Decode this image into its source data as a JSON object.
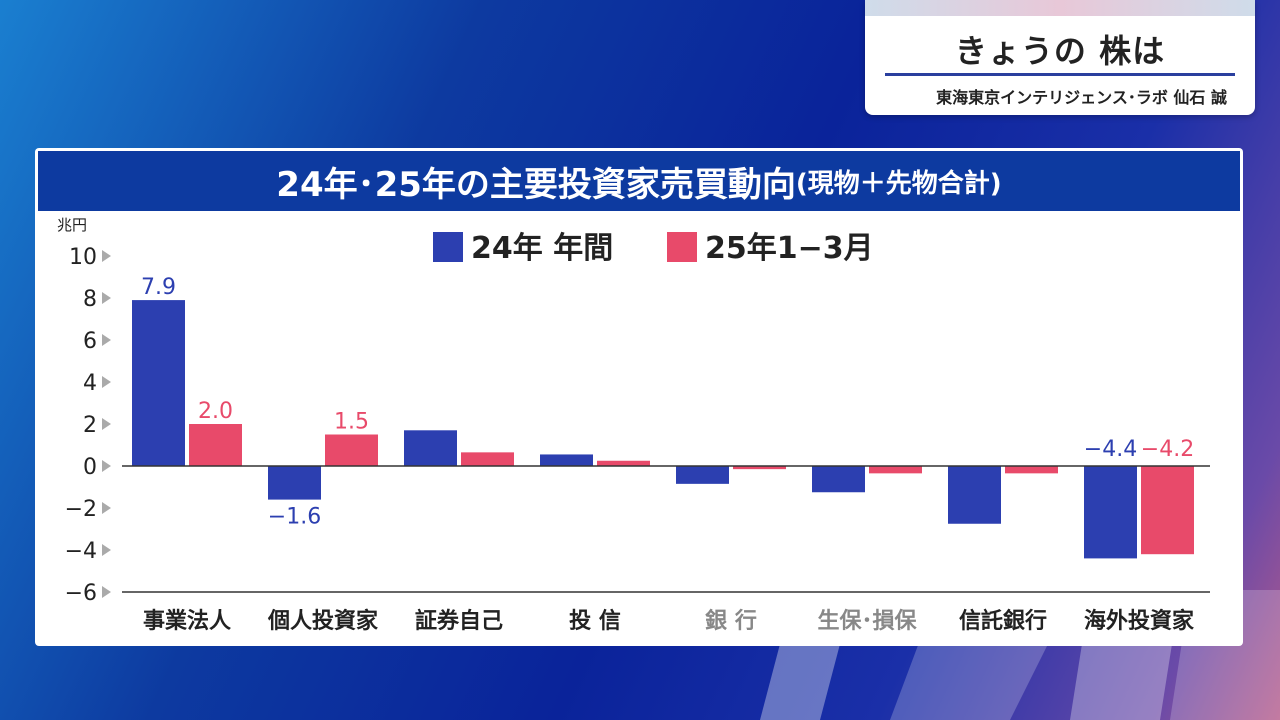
{
  "top_card": {
    "title": "きょうの 株は",
    "subtitle": "東海東京インテリジェンス･ラボ 仙石 誠"
  },
  "panel": {
    "title_main": "24年･25年の主要投資家売買動向",
    "title_note": "(現物＋先物合計)"
  },
  "colors": {
    "series_2024": "#2c3fb0",
    "series_2025": "#e84a6a",
    "header_bg": "#0d3aa0",
    "muted_category": "#888888"
  },
  "chart_data": {
    "type": "bar",
    "unit_label": "兆円",
    "categories": [
      "事業法人",
      "個人投資家",
      "証券自己",
      "投 信",
      "銀 行",
      "生保･損保",
      "信託銀行",
      "海外投資家"
    ],
    "muted_categories": [
      "銀 行",
      "生保･損保"
    ],
    "series": [
      {
        "name": "24年 年間",
        "values": [
          7.9,
          -1.6,
          1.7,
          0.55,
          -0.85,
          -1.25,
          -2.75,
          -4.4
        ]
      },
      {
        "name": "25年1−3月",
        "values": [
          2.0,
          1.5,
          0.65,
          0.25,
          -0.15,
          -0.35,
          -0.35,
          -4.2
        ]
      }
    ],
    "data_labels": [
      {
        "category": "事業法人",
        "series": 0,
        "text": "7.9"
      },
      {
        "category": "事業法人",
        "series": 1,
        "text": "2.0"
      },
      {
        "category": "個人投資家",
        "series": 0,
        "text": "−1.6"
      },
      {
        "category": "個人投資家",
        "series": 1,
        "text": "1.5"
      },
      {
        "category": "海外投資家",
        "series": 0,
        "text": "−4.4"
      },
      {
        "category": "海外投資家",
        "series": 1,
        "text": "−4.2"
      }
    ],
    "yticks": [
      "10",
      "8",
      "6",
      "4",
      "2",
      "0",
      "−2",
      "−4",
      "−6"
    ],
    "ylim": [
      -6,
      10
    ],
    "legend_position": "top-center",
    "grid": false
  }
}
